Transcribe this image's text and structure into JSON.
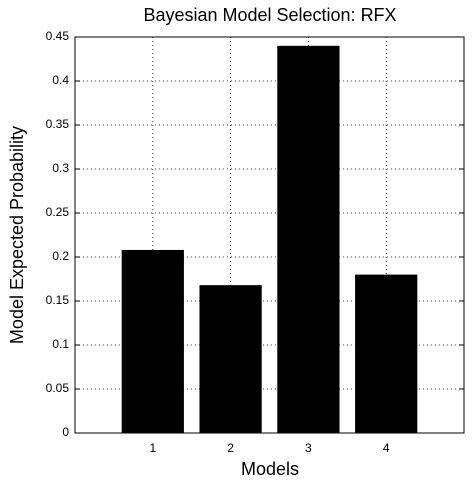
{
  "chart_data": {
    "type": "bar",
    "title": "Bayesian Model Selection: RFX",
    "x_label": "Models",
    "y_label": "Model Expected Probability",
    "categories": [
      "1",
      "2",
      "3",
      "4"
    ],
    "values": [
      0.208,
      0.168,
      0.44,
      0.18
    ],
    "color": "#000000",
    "ylim": [
      0,
      0.45
    ],
    "yticks": [
      0,
      0.05,
      0.1,
      0.15,
      0.2,
      0.25,
      0.3,
      0.35,
      0.4,
      0.45
    ],
    "grid": true
  }
}
